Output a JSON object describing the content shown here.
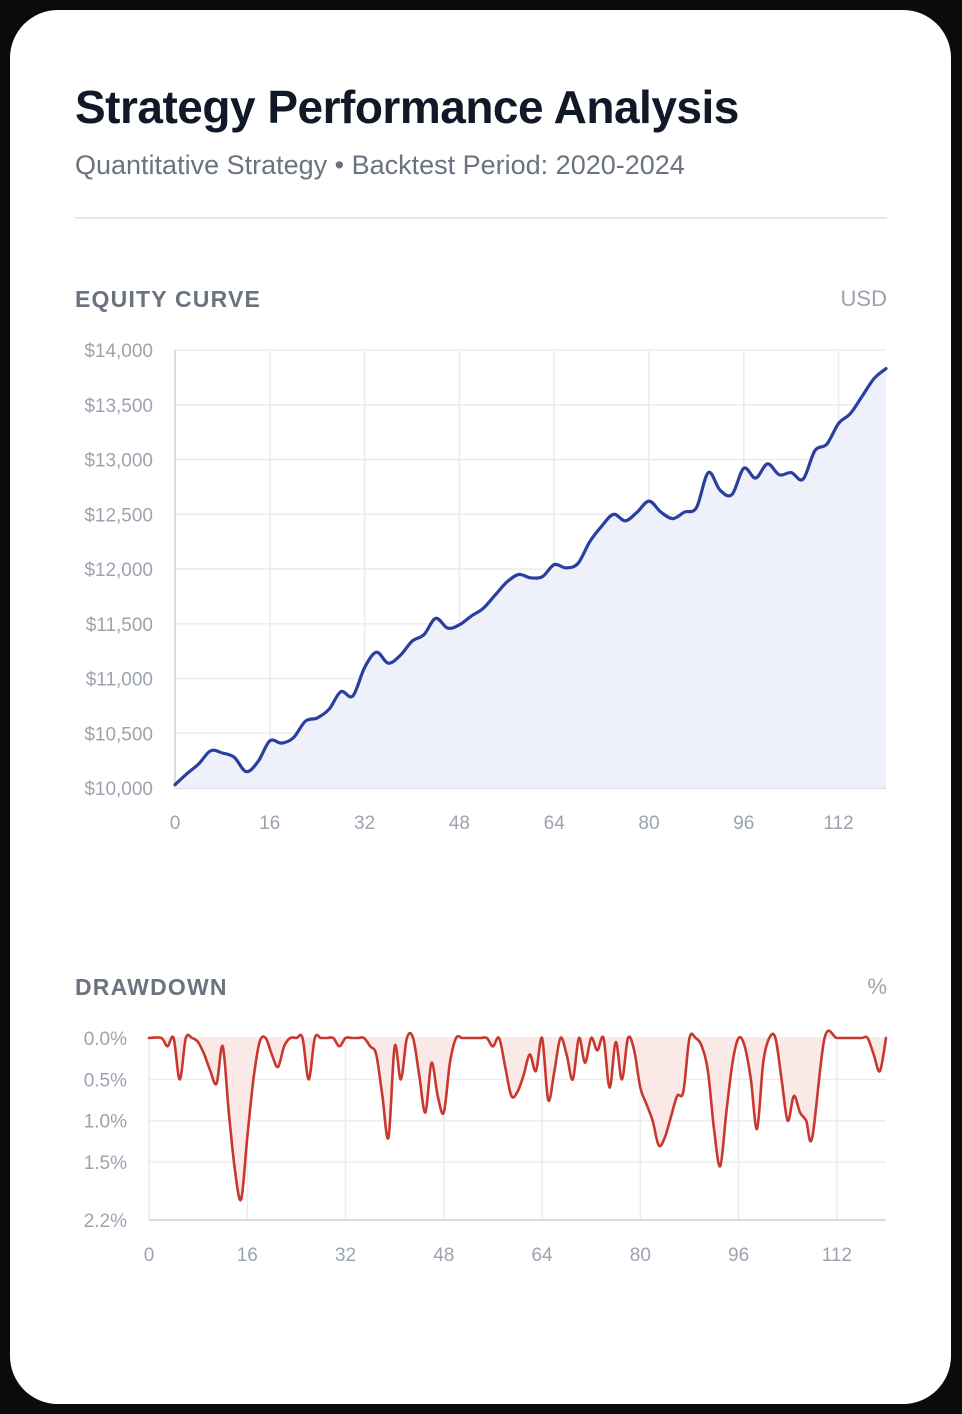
{
  "header": {
    "title": "Strategy Performance Analysis",
    "subtitle": "Quantitative Strategy • Backtest Period: 2020-2024"
  },
  "colors": {
    "equity_line": "#2b3f9e",
    "equity_fill": "#eef0fa",
    "drawdown_line": "#c8382f",
    "drawdown_fill": "#fbe9e8",
    "grid": "#ececef",
    "axis": "#d1d5db"
  },
  "chart_data": [
    {
      "type": "area",
      "section_label": "EQUITY CURVE",
      "unit": "USD",
      "x_ticks": [
        0,
        16,
        32,
        48,
        64,
        80,
        96,
        112
      ],
      "y_ticks": [
        "$10,000",
        "$10,500",
        "$11,000",
        "$11,500",
        "$12,000",
        "$12,500",
        "$13,000",
        "$13,500",
        "$14,000"
      ],
      "xlim": [
        0,
        120
      ],
      "ylim": [
        10000,
        14000
      ],
      "grid": true,
      "x": [
        0,
        2,
        4,
        6,
        8,
        10,
        12,
        14,
        16,
        18,
        20,
        22,
        24,
        26,
        28,
        30,
        32,
        34,
        36,
        38,
        40,
        42,
        44,
        46,
        48,
        50,
        52,
        54,
        56,
        58,
        60,
        62,
        64,
        66,
        68,
        70,
        72,
        74,
        76,
        78,
        80,
        82,
        84,
        86,
        88,
        90,
        92,
        94,
        96,
        98,
        100,
        102,
        104,
        106,
        108,
        110,
        112,
        114,
        116,
        118,
        120
      ],
      "values": [
        10030,
        10130,
        10220,
        10340,
        10320,
        10280,
        10150,
        10240,
        10430,
        10410,
        10460,
        10610,
        10640,
        10720,
        10880,
        10840,
        11100,
        11240,
        11140,
        11210,
        11340,
        11400,
        11550,
        11460,
        11490,
        11570,
        11640,
        11760,
        11880,
        11950,
        11920,
        11930,
        12040,
        12010,
        12050,
        12250,
        12390,
        12500,
        12440,
        12520,
        12620,
        12520,
        12460,
        12520,
        12560,
        12880,
        12720,
        12680,
        12920,
        12830,
        12960,
        12860,
        12880,
        12820,
        13080,
        13140,
        13330,
        13420,
        13580,
        13740,
        13830
      ]
    },
    {
      "type": "area",
      "section_label": "DRAWDOWN",
      "unit": "%",
      "x_ticks": [
        0,
        16,
        32,
        48,
        64,
        80,
        96,
        112
      ],
      "y_ticks": [
        "0.0%",
        "0.5%",
        "1.0%",
        "1.5%",
        "2.2%"
      ],
      "y_tick_values": [
        0,
        0.5,
        1.0,
        1.5,
        2.2
      ],
      "xlim": [
        0,
        120
      ],
      "ylim": [
        0,
        2.2
      ],
      "grid": true,
      "x": [
        0,
        2,
        3,
        4,
        5,
        6,
        7,
        8,
        9,
        10,
        11,
        12,
        13,
        14,
        15,
        16,
        17,
        18,
        19,
        20,
        21,
        22,
        23,
        24,
        25,
        26,
        27,
        28,
        29,
        30,
        31,
        32,
        33,
        34,
        35,
        36,
        37,
        38,
        39,
        40,
        41,
        42,
        43,
        44,
        45,
        46,
        47,
        48,
        49,
        50,
        51,
        52,
        53,
        54,
        55,
        56,
        57,
        58,
        59,
        60,
        61,
        62,
        63,
        64,
        65,
        66,
        67,
        68,
        69,
        70,
        71,
        72,
        73,
        74,
        75,
        76,
        77,
        78,
        79,
        80,
        81,
        82,
        83,
        84,
        85,
        86,
        87,
        88,
        89,
        90,
        91,
        92,
        93,
        94,
        95,
        96,
        97,
        98,
        99,
        100,
        101,
        102,
        103,
        104,
        105,
        106,
        107,
        108,
        110,
        112,
        114,
        116,
        117,
        118,
        119,
        120
      ],
      "values": [
        0,
        0,
        0.1,
        0,
        0.5,
        0,
        0,
        0.05,
        0.2,
        0.4,
        0.55,
        0.1,
        0.9,
        1.6,
        1.95,
        1.2,
        0.5,
        0.05,
        0,
        0.2,
        0.35,
        0.1,
        0,
        0,
        0,
        0.5,
        0,
        0,
        0,
        0,
        0.1,
        0,
        0,
        0,
        0,
        0.1,
        0.2,
        0.7,
        1.2,
        0.1,
        0.5,
        0,
        0,
        0.45,
        0.9,
        0.3,
        0.7,
        0.9,
        0.3,
        0,
        0,
        0,
        0,
        0,
        0,
        0.1,
        0,
        0.35,
        0.7,
        0.65,
        0.45,
        0.2,
        0.4,
        0,
        0.75,
        0.4,
        0,
        0.2,
        0.5,
        0,
        0.3,
        0,
        0.15,
        0,
        0.6,
        0.05,
        0.5,
        0,
        0.15,
        0.6,
        0.8,
        1.0,
        1.3,
        1.2,
        0.95,
        0.7,
        0.65,
        0,
        0,
        0.1,
        0.4,
        1.1,
        1.55,
        0.9,
        0.3,
        0,
        0.1,
        0.5,
        1.1,
        0.3,
        0,
        0,
        0.5,
        1.0,
        0.7,
        0.9,
        1.0,
        1.2,
        0,
        0,
        0,
        0,
        0,
        0.2,
        0.4,
        0
      ]
    }
  ]
}
